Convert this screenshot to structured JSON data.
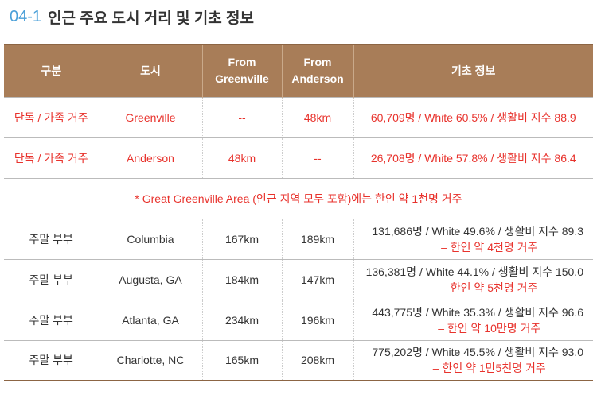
{
  "title": {
    "number": "04-1",
    "text": "인근 주요 도시 거리 및 기초 정보"
  },
  "header": {
    "col1": "구분",
    "col2": "도시",
    "col3_line1": "From",
    "col3_line2": "Greenville",
    "col4_line1": "From",
    "col4_line2": "Anderson",
    "col5": "기초 정보"
  },
  "rows": [
    {
      "category": "단독 / 가족 거주",
      "city": "Greenville",
      "from_greenville": "--",
      "from_anderson": "48km",
      "info": "60,709명 / White 60.5% / 생활비 지수 88.9"
    },
    {
      "category": "단독 / 가족 거주",
      "city": "Anderson",
      "from_greenville": "48km",
      "from_anderson": "--",
      "info": "26,708명 / White 57.8% / 생활비 지수 86.4"
    }
  ],
  "note": "* Great Greenville Area (인근 지역 모두 포함)에는 한인 약 1천명 거주",
  "weekend_rows": [
    {
      "category": "주말 부부",
      "city": "Columbia",
      "from_greenville": "167km",
      "from_anderson": "189km",
      "info_line1": "131,686명 / White 49.6% / 생활비 지수 89.3",
      "info_line2": "– 한인 약 4천명 거주"
    },
    {
      "category": "주말 부부",
      "city": "Augusta, GA",
      "from_greenville": "184km",
      "from_anderson": "147km",
      "info_line1": "136,381명 / White 44.1% / 생활비 지수 150.0",
      "info_line2": "– 한인 약 5천명 거주"
    },
    {
      "category": "주말 부부",
      "city": "Atlanta, GA",
      "from_greenville": "234km",
      "from_anderson": "196km",
      "info_line1": "443,775명 / White 35.3% / 생활비 지수 96.6",
      "info_line2": "– 한인 약 10만명 거주"
    },
    {
      "category": "주말 부부",
      "city": "Charlotte, NC",
      "from_greenville": "165km",
      "from_anderson": "208km",
      "info_line1": "775,202명 / White 45.5% / 생활비 지수 93.0",
      "info_line2": "– 한인 약 1만5천명 거주"
    }
  ]
}
